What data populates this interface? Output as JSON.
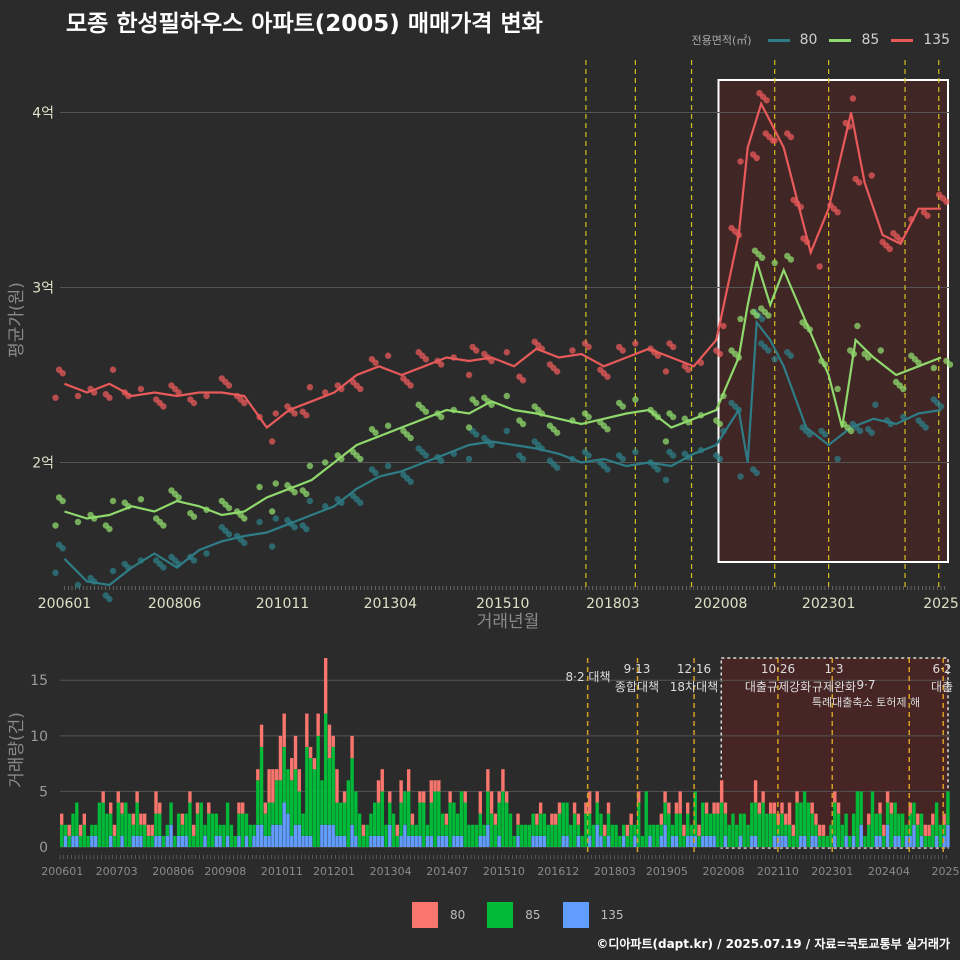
{
  "title": "모종 한성필하우스 아파트(2005) 매매가격 변화",
  "credit": "©디아파트(dapt.kr) / 2025.07.19 / 자료=국토교통부 실거래가",
  "legend_top": {
    "title": "전용면적(㎡)",
    "items": [
      {
        "label": "80",
        "color": "#2e7d86"
      },
      {
        "label": "85",
        "color": "#8fd96c"
      },
      {
        "label": "135",
        "color": "#e85a5a"
      }
    ]
  },
  "legend_bottom": {
    "items": [
      {
        "label": "80",
        "color": "#f8766d"
      },
      {
        "label": "85",
        "color": "#00ba38"
      },
      {
        "label": "135",
        "color": "#619cff"
      }
    ]
  },
  "chart_data": [
    {
      "type": "line",
      "xlabel": "거래년월",
      "ylabel": "평균가(원)",
      "x_ticks": [
        "200601",
        "200806",
        "201011",
        "201304",
        "201510",
        "201803",
        "202008",
        "202301",
        "2025"
      ],
      "y_ticks": [
        "2억",
        "3억",
        "4억"
      ],
      "ylim": [
        1.3,
        4.3
      ],
      "y_unit": "억",
      "highlight_start": "2020.06",
      "policy_lines": [
        "2017.08",
        "2018.09",
        "2019.12",
        "2021.10",
        "2023.01",
        "2024.09",
        "2025.06"
      ],
      "series": [
        {
          "name": "80",
          "points": [
            [
              2006.0,
              1.45
            ],
            [
              2006.5,
              1.32
            ],
            [
              2007.0,
              1.3
            ],
            [
              2007.5,
              1.4
            ],
            [
              2008.0,
              1.48
            ],
            [
              2008.5,
              1.4
            ],
            [
              2009.0,
              1.5
            ],
            [
              2009.5,
              1.55
            ],
            [
              2010.0,
              1.58
            ],
            [
              2010.5,
              1.6
            ],
            [
              2011.0,
              1.65
            ],
            [
              2011.5,
              1.7
            ],
            [
              2012.0,
              1.75
            ],
            [
              2012.5,
              1.85
            ],
            [
              2013.0,
              1.92
            ],
            [
              2013.5,
              1.95
            ],
            [
              2014.0,
              2.0
            ],
            [
              2014.5,
              2.05
            ],
            [
              2015.0,
              2.1
            ],
            [
              2015.5,
              2.12
            ],
            [
              2016.0,
              2.1
            ],
            [
              2016.5,
              2.08
            ],
            [
              2017.0,
              2.05
            ],
            [
              2017.5,
              2.0
            ],
            [
              2018.0,
              2.02
            ],
            [
              2018.5,
              1.98
            ],
            [
              2019.0,
              2.0
            ],
            [
              2019.5,
              1.98
            ],
            [
              2020.0,
              2.05
            ],
            [
              2020.5,
              2.1
            ],
            [
              2021.0,
              2.3
            ],
            [
              2021.2,
              2.0
            ],
            [
              2021.4,
              2.8
            ],
            [
              2021.7,
              2.7
            ],
            [
              2022.0,
              2.55
            ],
            [
              2022.5,
              2.2
            ],
            [
              2023.0,
              2.1
            ],
            [
              2023.5,
              2.2
            ],
            [
              2024.0,
              2.25
            ],
            [
              2024.5,
              2.22
            ],
            [
              2025.0,
              2.28
            ],
            [
              2025.5,
              2.3
            ]
          ]
        },
        {
          "name": "85",
          "points": [
            [
              2006.0,
              1.72
            ],
            [
              2006.5,
              1.68
            ],
            [
              2007.0,
              1.7
            ],
            [
              2007.5,
              1.75
            ],
            [
              2008.0,
              1.72
            ],
            [
              2008.5,
              1.78
            ],
            [
              2009.0,
              1.75
            ],
            [
              2009.5,
              1.7
            ],
            [
              2010.0,
              1.72
            ],
            [
              2010.5,
              1.8
            ],
            [
              2011.0,
              1.85
            ],
            [
              2011.5,
              1.9
            ],
            [
              2012.0,
              2.0
            ],
            [
              2012.5,
              2.1
            ],
            [
              2013.0,
              2.15
            ],
            [
              2013.5,
              2.2
            ],
            [
              2014.0,
              2.25
            ],
            [
              2014.5,
              2.3
            ],
            [
              2015.0,
              2.28
            ],
            [
              2015.5,
              2.35
            ],
            [
              2016.0,
              2.3
            ],
            [
              2016.5,
              2.28
            ],
            [
              2017.0,
              2.25
            ],
            [
              2017.5,
              2.22
            ],
            [
              2018.0,
              2.25
            ],
            [
              2018.5,
              2.28
            ],
            [
              2019.0,
              2.3
            ],
            [
              2019.5,
              2.2
            ],
            [
              2020.0,
              2.25
            ],
            [
              2020.5,
              2.3
            ],
            [
              2021.0,
              2.6
            ],
            [
              2021.2,
              2.9
            ],
            [
              2021.4,
              3.15
            ],
            [
              2021.7,
              2.9
            ],
            [
              2022.0,
              3.1
            ],
            [
              2022.5,
              2.8
            ],
            [
              2023.0,
              2.5
            ],
            [
              2023.3,
              2.2
            ],
            [
              2023.6,
              2.7
            ],
            [
              2024.0,
              2.6
            ],
            [
              2024.5,
              2.5
            ],
            [
              2025.0,
              2.55
            ],
            [
              2025.5,
              2.6
            ]
          ]
        },
        {
          "name": "135",
          "points": [
            [
              2006.0,
              2.45
            ],
            [
              2006.5,
              2.4
            ],
            [
              2007.0,
              2.45
            ],
            [
              2007.5,
              2.38
            ],
            [
              2008.0,
              2.4
            ],
            [
              2008.5,
              2.38
            ],
            [
              2009.0,
              2.4
            ],
            [
              2009.5,
              2.4
            ],
            [
              2010.0,
              2.38
            ],
            [
              2010.5,
              2.2
            ],
            [
              2011.0,
              2.3
            ],
            [
              2011.5,
              2.35
            ],
            [
              2012.0,
              2.4
            ],
            [
              2012.5,
              2.5
            ],
            [
              2013.0,
              2.55
            ],
            [
              2013.5,
              2.5
            ],
            [
              2014.0,
              2.55
            ],
            [
              2014.5,
              2.6
            ],
            [
              2015.0,
              2.58
            ],
            [
              2015.5,
              2.6
            ],
            [
              2016.0,
              2.55
            ],
            [
              2016.5,
              2.65
            ],
            [
              2017.0,
              2.6
            ],
            [
              2017.5,
              2.62
            ],
            [
              2018.0,
              2.55
            ],
            [
              2018.5,
              2.6
            ],
            [
              2019.0,
              2.65
            ],
            [
              2019.5,
              2.6
            ],
            [
              2020.0,
              2.55
            ],
            [
              2020.5,
              2.7
            ],
            [
              2021.0,
              3.3
            ],
            [
              2021.2,
              3.8
            ],
            [
              2021.5,
              4.05
            ],
            [
              2021.8,
              3.9
            ],
            [
              2022.0,
              3.8
            ],
            [
              2022.3,
              3.5
            ],
            [
              2022.6,
              3.2
            ],
            [
              2023.0,
              3.45
            ],
            [
              2023.5,
              4.0
            ],
            [
              2023.8,
              3.6
            ],
            [
              2024.2,
              3.3
            ],
            [
              2024.6,
              3.25
            ],
            [
              2025.0,
              3.45
            ],
            [
              2025.5,
              3.45
            ]
          ]
        }
      ]
    },
    {
      "type": "bar",
      "ylabel": "거래량(건)",
      "y_ticks": [
        "0",
        "5",
        "10",
        "15"
      ],
      "ylim": [
        0,
        17
      ],
      "x_ticks": [
        "200601",
        "200703",
        "200806",
        "200908",
        "201011",
        "201201",
        "201304",
        "201407",
        "201510",
        "201612",
        "201803",
        "201905",
        "202008",
        "202110",
        "202301",
        "202404",
        "2025"
      ],
      "policy_labels": [
        {
          "date": "8·2",
          "text": "대책"
        },
        {
          "date": "9·13",
          "text": "종합대책"
        },
        {
          "date": "12·16",
          "text": "18차대책"
        },
        {
          "date": "10·26",
          "text": "대출규제강화"
        },
        {
          "date": "1·3",
          "text": "규제완화"
        },
        {
          "date": "9·7",
          "text": "특례대출축소 토허제 해"
        },
        {
          "date": "6·2",
          "text": "대출"
        }
      ],
      "series_names": [
        "80",
        "85",
        "135"
      ],
      "monthly_note": "stacked monthly counts 2006-2025; peak 17 (2011)"
    }
  ]
}
